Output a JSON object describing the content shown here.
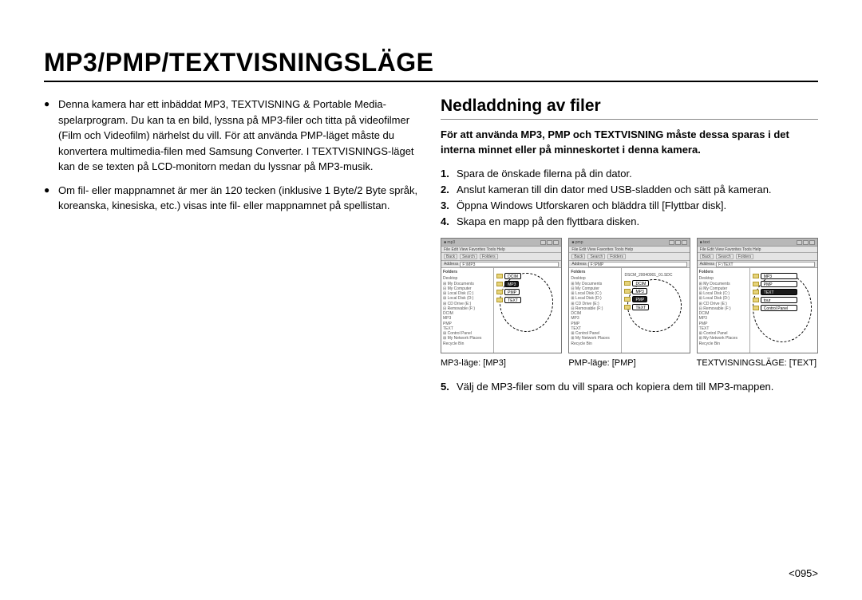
{
  "title": "MP3/PMP/TEXTVISNINGSLÄGE",
  "left": {
    "b1": "Denna kamera har ett inbäddat MP3, TEXTVISNING & Portable Media-spelarprogram. Du kan ta en bild, lyssna på MP3-filer och titta på videofilmer (Film och Videofilm) närhelst du vill. För att använda PMP-läget måste du konvertera multimedia-filen med Samsung Converter. I TEXTVISNINGS-läget kan de se texten på LCD-monitorn medan du lyssnar på MP3-musik.",
    "b2": "Om fil- eller mappnamnet är mer än 120 tecken (inklusive 1 Byte/2 Byte språk, koreanska, kinesiska, etc.) visas inte fil- eller mappnamnet på spellistan."
  },
  "right": {
    "heading": "Nedladdning av filer",
    "intro": "För att använda MP3, PMP och TEXTVISNING måste dessa sparas i det interna minnet eller på minneskortet i denna kamera.",
    "steps": {
      "s1n": "1.",
      "s1": "Spara de önskade filerna på din dator.",
      "s2n": "2.",
      "s2": "Anslut kameran till din dator med USB-sladden och sätt på kameran.",
      "s3n": "3.",
      "s3": "Öppna Windows Utforskaren och bläddra till [Flyttbar disk].",
      "s4n": "4.",
      "s4": "Skapa en mapp på den flyttbara disken.",
      "s5n": "5.",
      "s5": "Välj de MP3-filer som du vill spara och kopiera dem till MP3-mappen."
    },
    "captions": {
      "c1": "MP3-läge: [MP3]",
      "c2": "PMP-läge: [PMP]",
      "c3": "TEXTVISNINGSLÄGE: [TEXT]"
    },
    "explorer": {
      "win_title_prefix": "■ ",
      "win1_title": "mp3",
      "win2_title": "pmp",
      "win3_title": "text",
      "menu": "File  Edit  View  Favorites  Tools  Help",
      "back": "Back",
      "search": "Search",
      "folders": "Folders",
      "addr_label": "Address",
      "addr1": "F:\\MP3",
      "addr2": "F:\\PMP",
      "addr3": "F:\\TEXT",
      "tree_head": "Folders",
      "tree_items": [
        "Desktop",
        "⊞ My Documents",
        "⊟ My Computer",
        "  ⊞ Local Disk (C:)",
        "  ⊞ Local Disk (D:)",
        "  ⊞ CD Drive (E:)",
        "  ⊟ Removable (F:)",
        "      DCIM",
        "      MP3",
        "      PMP",
        "      TEXT",
        "  ⊞ Control Panel",
        "⊞ My Network Places",
        "  Recycle Bin"
      ],
      "shot1_files": [
        {
          "label": "DCIM",
          "sel": false
        },
        {
          "label": "MP3",
          "sel": true
        },
        {
          "label": "PMP",
          "sel": false
        },
        {
          "label": "TEXT",
          "sel": false
        }
      ],
      "shot2_files": [
        {
          "label": "DCIM",
          "sel": false
        },
        {
          "label": "MP3",
          "sel": false
        },
        {
          "label": "PMP",
          "sel": true
        },
        {
          "label": "TEXT",
          "sel": false
        }
      ],
      "shot3_files": [
        {
          "label": "MP3",
          "sel": false
        },
        {
          "label": "PMP",
          "sel": false
        },
        {
          "label": "TEXT",
          "sel": true
        },
        {
          "label": "tour",
          "sel": false
        },
        {
          "label": "Control Panel",
          "sel": false
        }
      ],
      "shot2_top_file": "DSCM_20040901_01.SDC"
    }
  },
  "page_number": "<095>",
  "colors": {
    "text": "#000000",
    "rule": "#000000",
    "subrule": "#888888",
    "shot_bg": "#d9d9d9",
    "shot_titlebar": "#b8b8b8",
    "shot_toolbar": "#e4e4e4",
    "folder": "#e6d37a",
    "folder_border": "#b39a2a",
    "selected_bg": "#1a1a1a",
    "selected_fg": "#ffffff"
  }
}
